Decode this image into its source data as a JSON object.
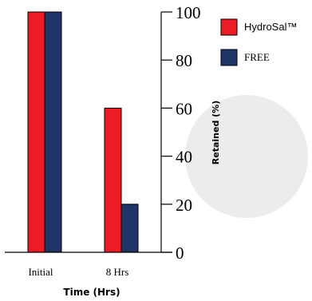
{
  "chart_data": {
    "type": "bar",
    "categories": [
      "Initial",
      "8 Hrs"
    ],
    "series": [
      {
        "name": "HydroSal™",
        "values": [
          100,
          60
        ],
        "color": "#ed1c24"
      },
      {
        "name": "FREE",
        "values": [
          100,
          20
        ],
        "color": "#1f3567"
      }
    ],
    "xlabel": "Time (Hrs)",
    "ylabel": "Retained (%)",
    "ylim": [
      0,
      100
    ],
    "yticks": [
      0,
      20,
      40,
      60,
      80,
      100
    ],
    "y_axis_side": "right",
    "legend_position": "top-right",
    "grid": false,
    "watermark_color": "#ececec"
  }
}
